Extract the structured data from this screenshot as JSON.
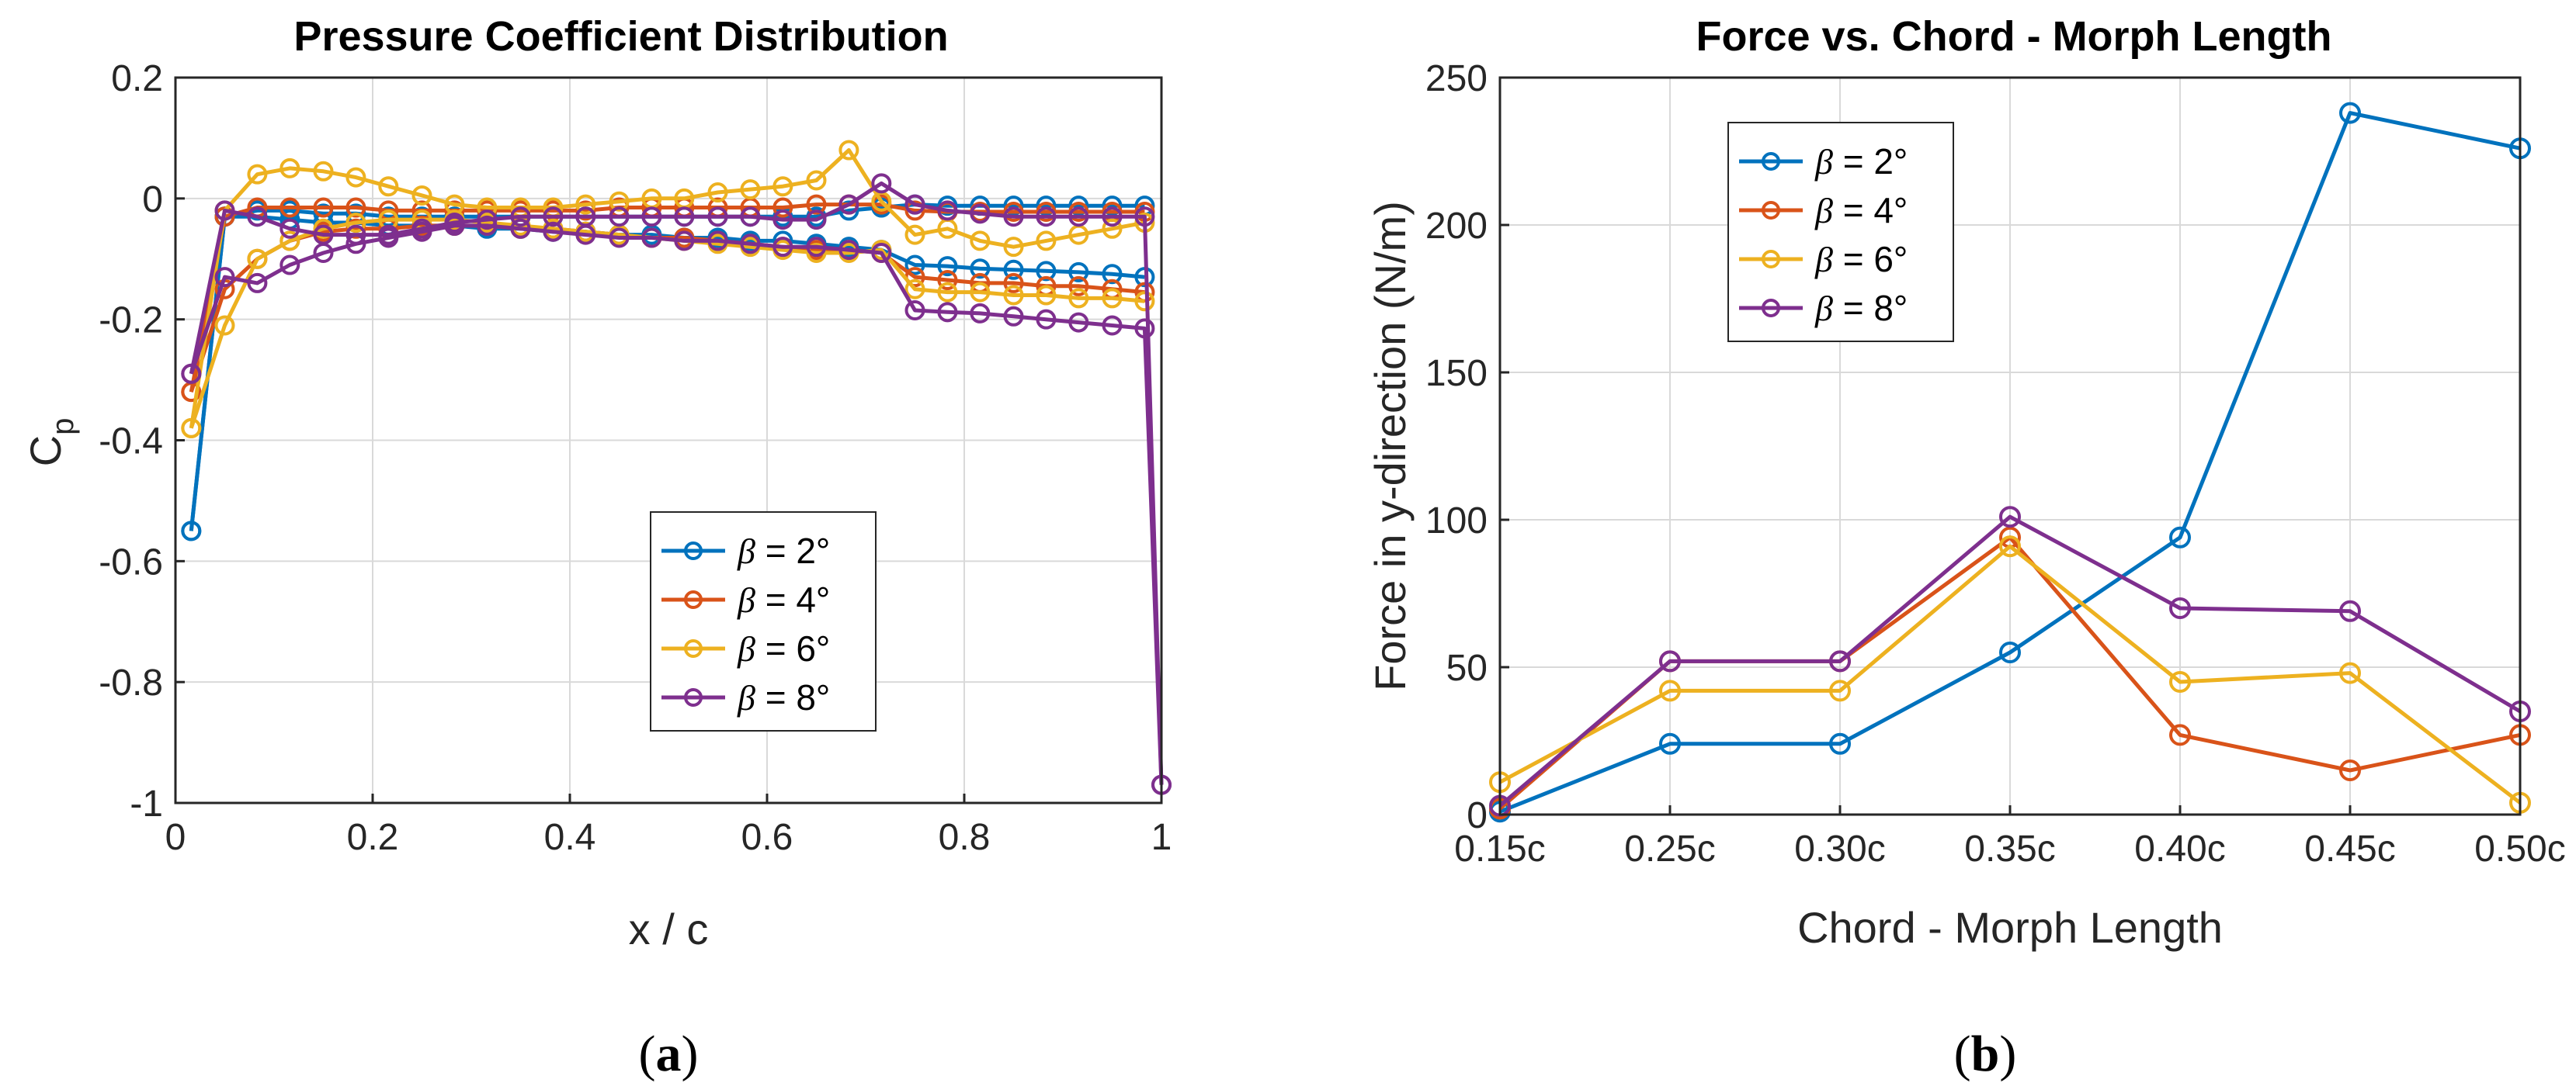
{
  "colors": {
    "series": [
      "#0072BD",
      "#D95319",
      "#EDB120",
      "#7E2F8E"
    ],
    "grid": "#d9d9d9",
    "axis": "#262626"
  },
  "chart_data": [
    {
      "id": "a",
      "type": "line",
      "subfigure_label": "a",
      "title": "Pressure Coefficient Distribution",
      "xlabel": "x / c",
      "ylabel_main": "C",
      "ylabel_sub": "p",
      "xlim": [
        0,
        1
      ],
      "ylim": [
        -1,
        0.2
      ],
      "xticks": [
        0,
        0.2,
        0.4,
        0.6,
        0.8,
        1
      ],
      "xticklabels": [
        "0",
        "0.2",
        "0.4",
        "0.6",
        "0.8",
        "1"
      ],
      "yticks": [
        -1,
        -0.8,
        -0.6,
        -0.4,
        -0.2,
        0,
        0.2
      ],
      "yticklabels": [
        "-1",
        "-0.8",
        "-0.6",
        "-0.4",
        "-0.2",
        "0",
        "0.2"
      ],
      "grid": true,
      "legend_position": "center-right",
      "series": [
        {
          "name": "2°",
          "legend_prefix": "β = ",
          "curves": [
            {
              "x": [
                0.016,
                0.05,
                0.083,
                0.116,
                0.15,
                0.183,
                0.216,
                0.25,
                0.283,
                0.316,
                0.35,
                0.383,
                0.416,
                0.45,
                0.483,
                0.516,
                0.55,
                0.583,
                0.616,
                0.65,
                0.683,
                0.716,
                0.75,
                0.783,
                0.816,
                0.85,
                0.883,
                0.916,
                0.95,
                0.983
              ],
              "y": [
                -0.55,
                -0.03,
                -0.03,
                -0.035,
                -0.04,
                -0.04,
                -0.045,
                -0.045,
                -0.045,
                -0.05,
                -0.05,
                -0.055,
                -0.055,
                -0.06,
                -0.06,
                -0.065,
                -0.065,
                -0.07,
                -0.07,
                -0.075,
                -0.08,
                -0.085,
                -0.11,
                -0.112,
                -0.116,
                -0.118,
                -0.12,
                -0.122,
                -0.125,
                -0.13
              ]
            },
            {
              "x": [
                0.016,
                0.05,
                0.083,
                0.116,
                0.15,
                0.183,
                0.216,
                0.25,
                0.283,
                0.316,
                0.35,
                0.383,
                0.416,
                0.45,
                0.483,
                0.516,
                0.55,
                0.583,
                0.616,
                0.65,
                0.683,
                0.716,
                0.75,
                0.783,
                0.816,
                0.85,
                0.883,
                0.916,
                0.95,
                0.983
              ],
              "y": [
                -0.55,
                -0.03,
                -0.02,
                -0.02,
                -0.025,
                -0.025,
                -0.03,
                -0.03,
                -0.03,
                -0.03,
                -0.03,
                -0.03,
                -0.03,
                -0.03,
                -0.03,
                -0.03,
                -0.03,
                -0.03,
                -0.03,
                -0.03,
                -0.02,
                -0.015,
                -0.01,
                -0.012,
                -0.012,
                -0.012,
                -0.012,
                -0.012,
                -0.012,
                -0.012
              ]
            }
          ]
        },
        {
          "name": "4°",
          "legend_prefix": "β = ",
          "curves": [
            {
              "x": [
                0.016,
                0.05,
                0.083,
                0.116,
                0.15,
                0.183,
                0.216,
                0.25,
                0.283,
                0.316,
                0.35,
                0.383,
                0.416,
                0.45,
                0.483,
                0.516,
                0.55,
                0.583,
                0.616,
                0.65,
                0.683,
                0.716,
                0.75,
                0.783,
                0.816,
                0.85,
                0.883,
                0.916,
                0.95,
                0.983
              ],
              "y": [
                -0.32,
                -0.03,
                -0.015,
                -0.015,
                -0.015,
                -0.015,
                -0.02,
                -0.02,
                -0.02,
                -0.02,
                -0.02,
                -0.02,
                -0.02,
                -0.015,
                -0.015,
                -0.015,
                -0.015,
                -0.015,
                -0.015,
                -0.01,
                -0.01,
                -0.01,
                -0.02,
                -0.022,
                -0.022,
                -0.022,
                -0.022,
                -0.022,
                -0.022,
                -0.022
              ]
            },
            {
              "x": [
                0.016,
                0.05,
                0.083,
                0.116,
                0.15,
                0.183,
                0.216,
                0.25,
                0.283,
                0.316,
                0.35,
                0.383,
                0.416,
                0.45,
                0.483,
                0.516,
                0.55,
                0.583,
                0.616,
                0.65,
                0.683,
                0.716,
                0.75,
                0.783,
                0.816,
                0.85,
                0.883,
                0.916,
                0.95,
                0.983
              ],
              "y": [
                -0.32,
                -0.15,
                -0.1,
                -0.07,
                -0.055,
                -0.05,
                -0.05,
                -0.045,
                -0.045,
                -0.045,
                -0.05,
                -0.05,
                -0.055,
                -0.06,
                -0.065,
                -0.065,
                -0.07,
                -0.075,
                -0.08,
                -0.085,
                -0.085,
                -0.09,
                -0.13,
                -0.135,
                -0.14,
                -0.14,
                -0.145,
                -0.145,
                -0.15,
                -0.155
              ]
            }
          ]
        },
        {
          "name": "6°",
          "legend_prefix": "β = ",
          "curves": [
            {
              "x": [
                0.016,
                0.05,
                0.083,
                0.116,
                0.15,
                0.183,
                0.216,
                0.25,
                0.283,
                0.316,
                0.35,
                0.383,
                0.416,
                0.45,
                0.483,
                0.516,
                0.55,
                0.583,
                0.616,
                0.65,
                0.683,
                0.716,
                0.75,
                0.783,
                0.816,
                0.85,
                0.883,
                0.916,
                0.95,
                0.983
              ],
              "y": [
                -0.38,
                -0.02,
                0.04,
                0.05,
                0.045,
                0.035,
                0.02,
                0.005,
                -0.01,
                -0.015,
                -0.015,
                -0.015,
                -0.01,
                -0.005,
                0.0,
                0.0,
                0.01,
                0.015,
                0.02,
                0.03,
                0.08,
                -0.005,
                -0.06,
                -0.05,
                -0.07,
                -0.08,
                -0.07,
                -0.06,
                -0.05,
                -0.04
              ]
            },
            {
              "x": [
                0.016,
                0.05,
                0.083,
                0.116,
                0.15,
                0.183,
                0.216,
                0.25,
                0.283,
                0.316,
                0.35,
                0.383,
                0.416,
                0.45,
                0.483,
                0.516,
                0.55,
                0.583,
                0.616,
                0.65,
                0.683,
                0.716,
                0.75,
                0.783,
                0.816,
                0.85,
                0.883,
                0.916,
                0.95,
                0.983
              ],
              "y": [
                -0.38,
                -0.21,
                -0.1,
                -0.07,
                -0.05,
                -0.04,
                -0.035,
                -0.035,
                -0.035,
                -0.04,
                -0.045,
                -0.05,
                -0.055,
                -0.06,
                -0.065,
                -0.07,
                -0.075,
                -0.08,
                -0.085,
                -0.09,
                -0.09,
                -0.085,
                -0.15,
                -0.155,
                -0.155,
                -0.16,
                -0.16,
                -0.165,
                -0.165,
                -0.17
              ]
            }
          ]
        },
        {
          "name": "8°",
          "legend_prefix": "β = ",
          "curves": [
            {
              "x": [
                0.016,
                0.05,
                0.083,
                0.116,
                0.15,
                0.183,
                0.216,
                0.25,
                0.283,
                0.316,
                0.35,
                0.383,
                0.416,
                0.45,
                0.483,
                0.516,
                0.55,
                0.583,
                0.616,
                0.65,
                0.683,
                0.716,
                0.75,
                0.783,
                0.816,
                0.85,
                0.883,
                0.916,
                0.95,
                0.983,
                1.0
              ],
              "y": [
                -0.29,
                -0.02,
                -0.03,
                -0.05,
                -0.06,
                -0.06,
                -0.06,
                -0.05,
                -0.04,
                -0.035,
                -0.03,
                -0.03,
                -0.03,
                -0.03,
                -0.03,
                -0.03,
                -0.03,
                -0.03,
                -0.035,
                -0.035,
                -0.01,
                0.025,
                -0.01,
                -0.02,
                -0.025,
                -0.03,
                -0.03,
                -0.03,
                -0.03,
                -0.03,
                -0.97
              ]
            },
            {
              "x": [
                0.016,
                0.05,
                0.083,
                0.116,
                0.15,
                0.183,
                0.216,
                0.25,
                0.283,
                0.316,
                0.35,
                0.383,
                0.416,
                0.45,
                0.483,
                0.516,
                0.55,
                0.583,
                0.616,
                0.65,
                0.683,
                0.716,
                0.75,
                0.783,
                0.816,
                0.85,
                0.883,
                0.916,
                0.95,
                0.983,
                1.0
              ],
              "y": [
                -0.29,
                -0.13,
                -0.14,
                -0.11,
                -0.09,
                -0.075,
                -0.065,
                -0.055,
                -0.045,
                -0.045,
                -0.05,
                -0.055,
                -0.06,
                -0.065,
                -0.065,
                -0.07,
                -0.07,
                -0.075,
                -0.08,
                -0.08,
                -0.085,
                -0.09,
                -0.185,
                -0.188,
                -0.19,
                -0.195,
                -0.2,
                -0.205,
                -0.21,
                -0.215,
                -0.97
              ]
            }
          ]
        }
      ]
    },
    {
      "id": "b",
      "type": "line",
      "subfigure_label": "b",
      "title": "Force vs. Chord - Morph Length",
      "xlabel": "Chord - Morph Length",
      "ylabel": "Force in y-direction (N/m)",
      "categories": [
        "0.15c",
        "0.25c",
        "0.30c",
        "0.35c",
        "0.40c",
        "0.45c",
        "0.50c"
      ],
      "ylim": [
        0,
        250
      ],
      "yticks": [
        0,
        50,
        100,
        150,
        200,
        250
      ],
      "yticklabels": [
        "0",
        "50",
        "100",
        "150",
        "200",
        "250"
      ],
      "grid": true,
      "legend_position": "top-left",
      "series": [
        {
          "name": "2°",
          "legend_prefix": "β = ",
          "values": [
            1,
            24,
            24,
            55,
            94,
            238,
            226
          ]
        },
        {
          "name": "4°",
          "legend_prefix": "β = ",
          "values": [
            2,
            52,
            52,
            94,
            27,
            15,
            27
          ]
        },
        {
          "name": "6°",
          "legend_prefix": "β = ",
          "values": [
            11,
            42,
            42,
            91,
            45,
            48,
            4
          ]
        },
        {
          "name": "8°",
          "legend_prefix": "β = ",
          "values": [
            3,
            52,
            52,
            101,
            70,
            69,
            35
          ]
        }
      ]
    }
  ]
}
